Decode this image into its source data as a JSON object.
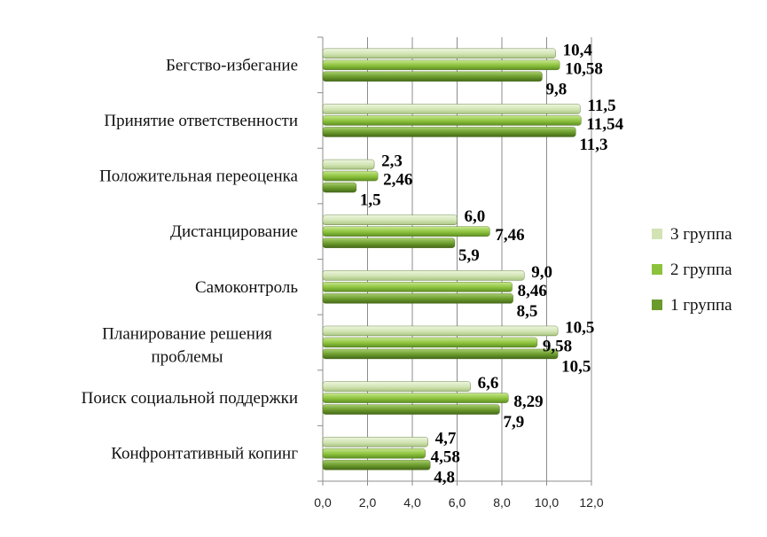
{
  "chart_data": {
    "type": "bar",
    "orientation": "horizontal",
    "title": "",
    "xlabel": "",
    "ylabel": "",
    "xlim": [
      0,
      12
    ],
    "x_ticks": [
      "0,0",
      "2,0",
      "4,0",
      "6,0",
      "8,0",
      "10,0",
      "12,0"
    ],
    "grid": true,
    "legend_position": "right",
    "categories": [
      "Бегство-избегание",
      "Принятие ответственности",
      "Положительная переоценка",
      "Дистанцирование",
      "Самоконтроль",
      "Планирование решения проблемы",
      "Поиск социальной поддержки",
      "Конфронтативный копинг"
    ],
    "series": [
      {
        "name": "3 группа",
        "color": "#d2e4b3",
        "values": [
          10.4,
          11.5,
          2.3,
          6.0,
          9.0,
          10.5,
          6.6,
          4.7
        ],
        "labels": [
          "10,4",
          "11,5",
          "2,3",
          "6,0",
          "9,0",
          "10,5",
          "6,6",
          "4,7"
        ]
      },
      {
        "name": "2 группа",
        "color": "#8dc23d",
        "values": [
          10.58,
          11.54,
          2.46,
          7.46,
          8.46,
          9.58,
          8.29,
          4.58
        ],
        "labels": [
          "10,58",
          "11,54",
          "2,46",
          "7,46",
          "8,46",
          "9,58",
          "8,29",
          "4,58"
        ]
      },
      {
        "name": "1 группа",
        "color": "#6a9a2b",
        "values": [
          9.8,
          11.3,
          1.5,
          5.9,
          8.5,
          10.5,
          7.9,
          4.8
        ],
        "labels": [
          "9,8",
          "11,3",
          "1,5",
          "5,9",
          "8,5",
          "10,5",
          "7,9",
          "4,8"
        ]
      }
    ],
    "legend_order": [
      "3 группа",
      "2 группа",
      "1 группа"
    ]
  }
}
